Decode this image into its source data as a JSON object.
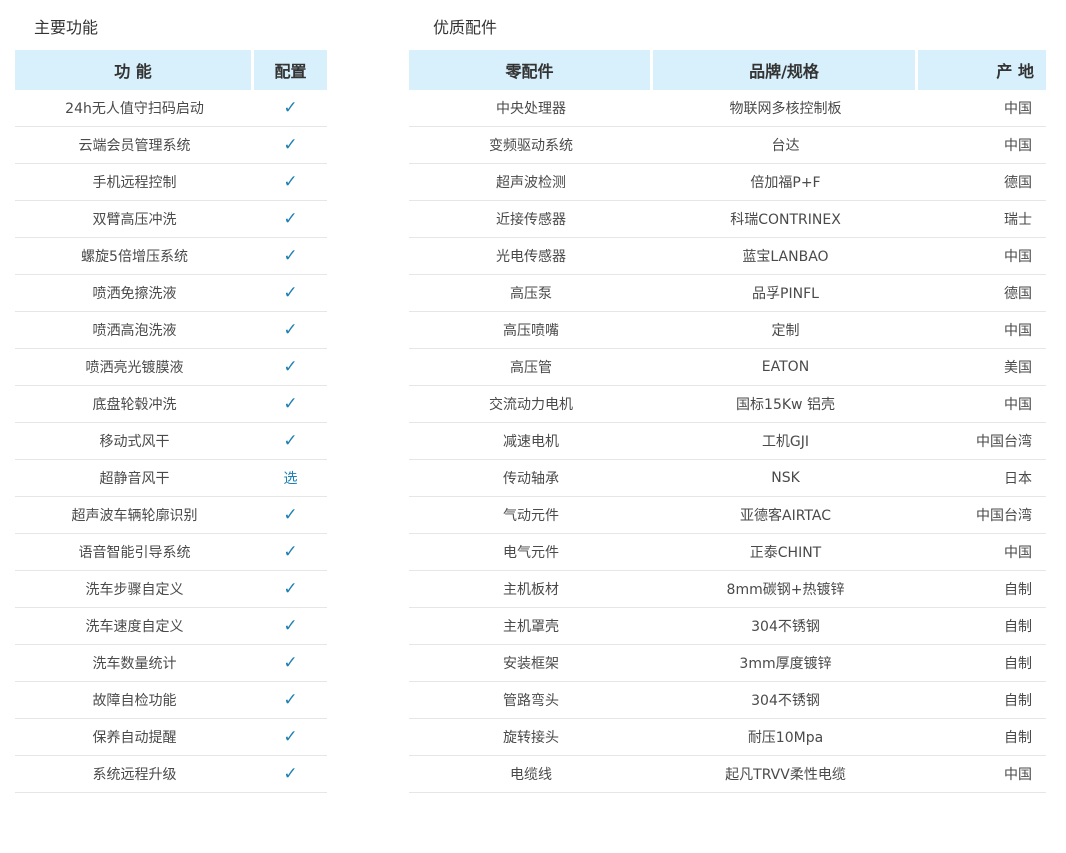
{
  "features": {
    "title": "主要功能",
    "headers": [
      "功  能",
      "配置"
    ],
    "rows": [
      {
        "name": "24h无人值守扫码启动",
        "config": "✓"
      },
      {
        "name": "云端会员管理系统",
        "config": "✓"
      },
      {
        "name": "手机远程控制",
        "config": "✓"
      },
      {
        "name": "双臂高压冲洗",
        "config": "✓"
      },
      {
        "name": "螺旋5倍增压系统",
        "config": "✓"
      },
      {
        "name": "喷洒免擦洗液",
        "config": "✓"
      },
      {
        "name": "喷洒高泡洗液",
        "config": "✓"
      },
      {
        "name": "喷洒亮光镀膜液",
        "config": "✓"
      },
      {
        "name": "底盘轮毂冲洗",
        "config": "✓"
      },
      {
        "name": "移动式风干",
        "config": "✓"
      },
      {
        "name": "超静音风干",
        "config": "选"
      },
      {
        "name": "超声波车辆轮廓识别",
        "config": "✓"
      },
      {
        "name": "语音智能引导系统",
        "config": "✓"
      },
      {
        "name": "洗车步骤自定义",
        "config": "✓"
      },
      {
        "name": "洗车速度自定义",
        "config": "✓"
      },
      {
        "name": "洗车数量统计",
        "config": "✓"
      },
      {
        "name": "故障自检功能",
        "config": "✓"
      },
      {
        "name": "保养自动提醒",
        "config": "✓"
      },
      {
        "name": "系统远程升级",
        "config": "✓"
      }
    ]
  },
  "parts": {
    "title": "优质配件",
    "headers": [
      "零配件",
      "品牌/规格",
      "产 地"
    ],
    "rows": [
      [
        "中央处理器",
        "物联网多核控制板",
        "中国"
      ],
      [
        "变频驱动系统",
        "台达",
        "中国"
      ],
      [
        "超声波检测",
        "倍加福P+F",
        "德国"
      ],
      [
        "近接传感器",
        "科瑞CONTRINEX",
        "瑞士"
      ],
      [
        "光电传感器",
        "蓝宝LANBAO",
        "中国"
      ],
      [
        "高压泵",
        "品孚PINFL",
        "德国"
      ],
      [
        "高压喷嘴",
        "定制",
        "中国"
      ],
      [
        "高压管",
        "EATON",
        "美国"
      ],
      [
        "交流动力电机",
        "国标15Kw 铝壳",
        "中国"
      ],
      [
        "减速电机",
        "工机GJI",
        "中国台湾"
      ],
      [
        "传动轴承",
        "NSK",
        "日本"
      ],
      [
        "气动元件",
        "亚德客AIRTAC",
        "中国台湾"
      ],
      [
        "电气元件",
        "正泰CHINT",
        "中国"
      ],
      [
        "主机板材",
        "8mm碳钢+热镀锌",
        "自制"
      ],
      [
        "主机罩壳",
        "304不锈钢",
        "自制"
      ],
      [
        "安装框架",
        "3mm厚度镀锌",
        "自制"
      ],
      [
        "管路弯头",
        "304不锈钢",
        "自制"
      ],
      [
        "旋转接头",
        "耐压10Mpa",
        "自制"
      ],
      [
        "电缆线",
        "起凡TRVV柔性电缆",
        "中国"
      ]
    ]
  },
  "colors": {
    "header_bg": "#d8f0fb",
    "accent": "#1d7fb3"
  }
}
